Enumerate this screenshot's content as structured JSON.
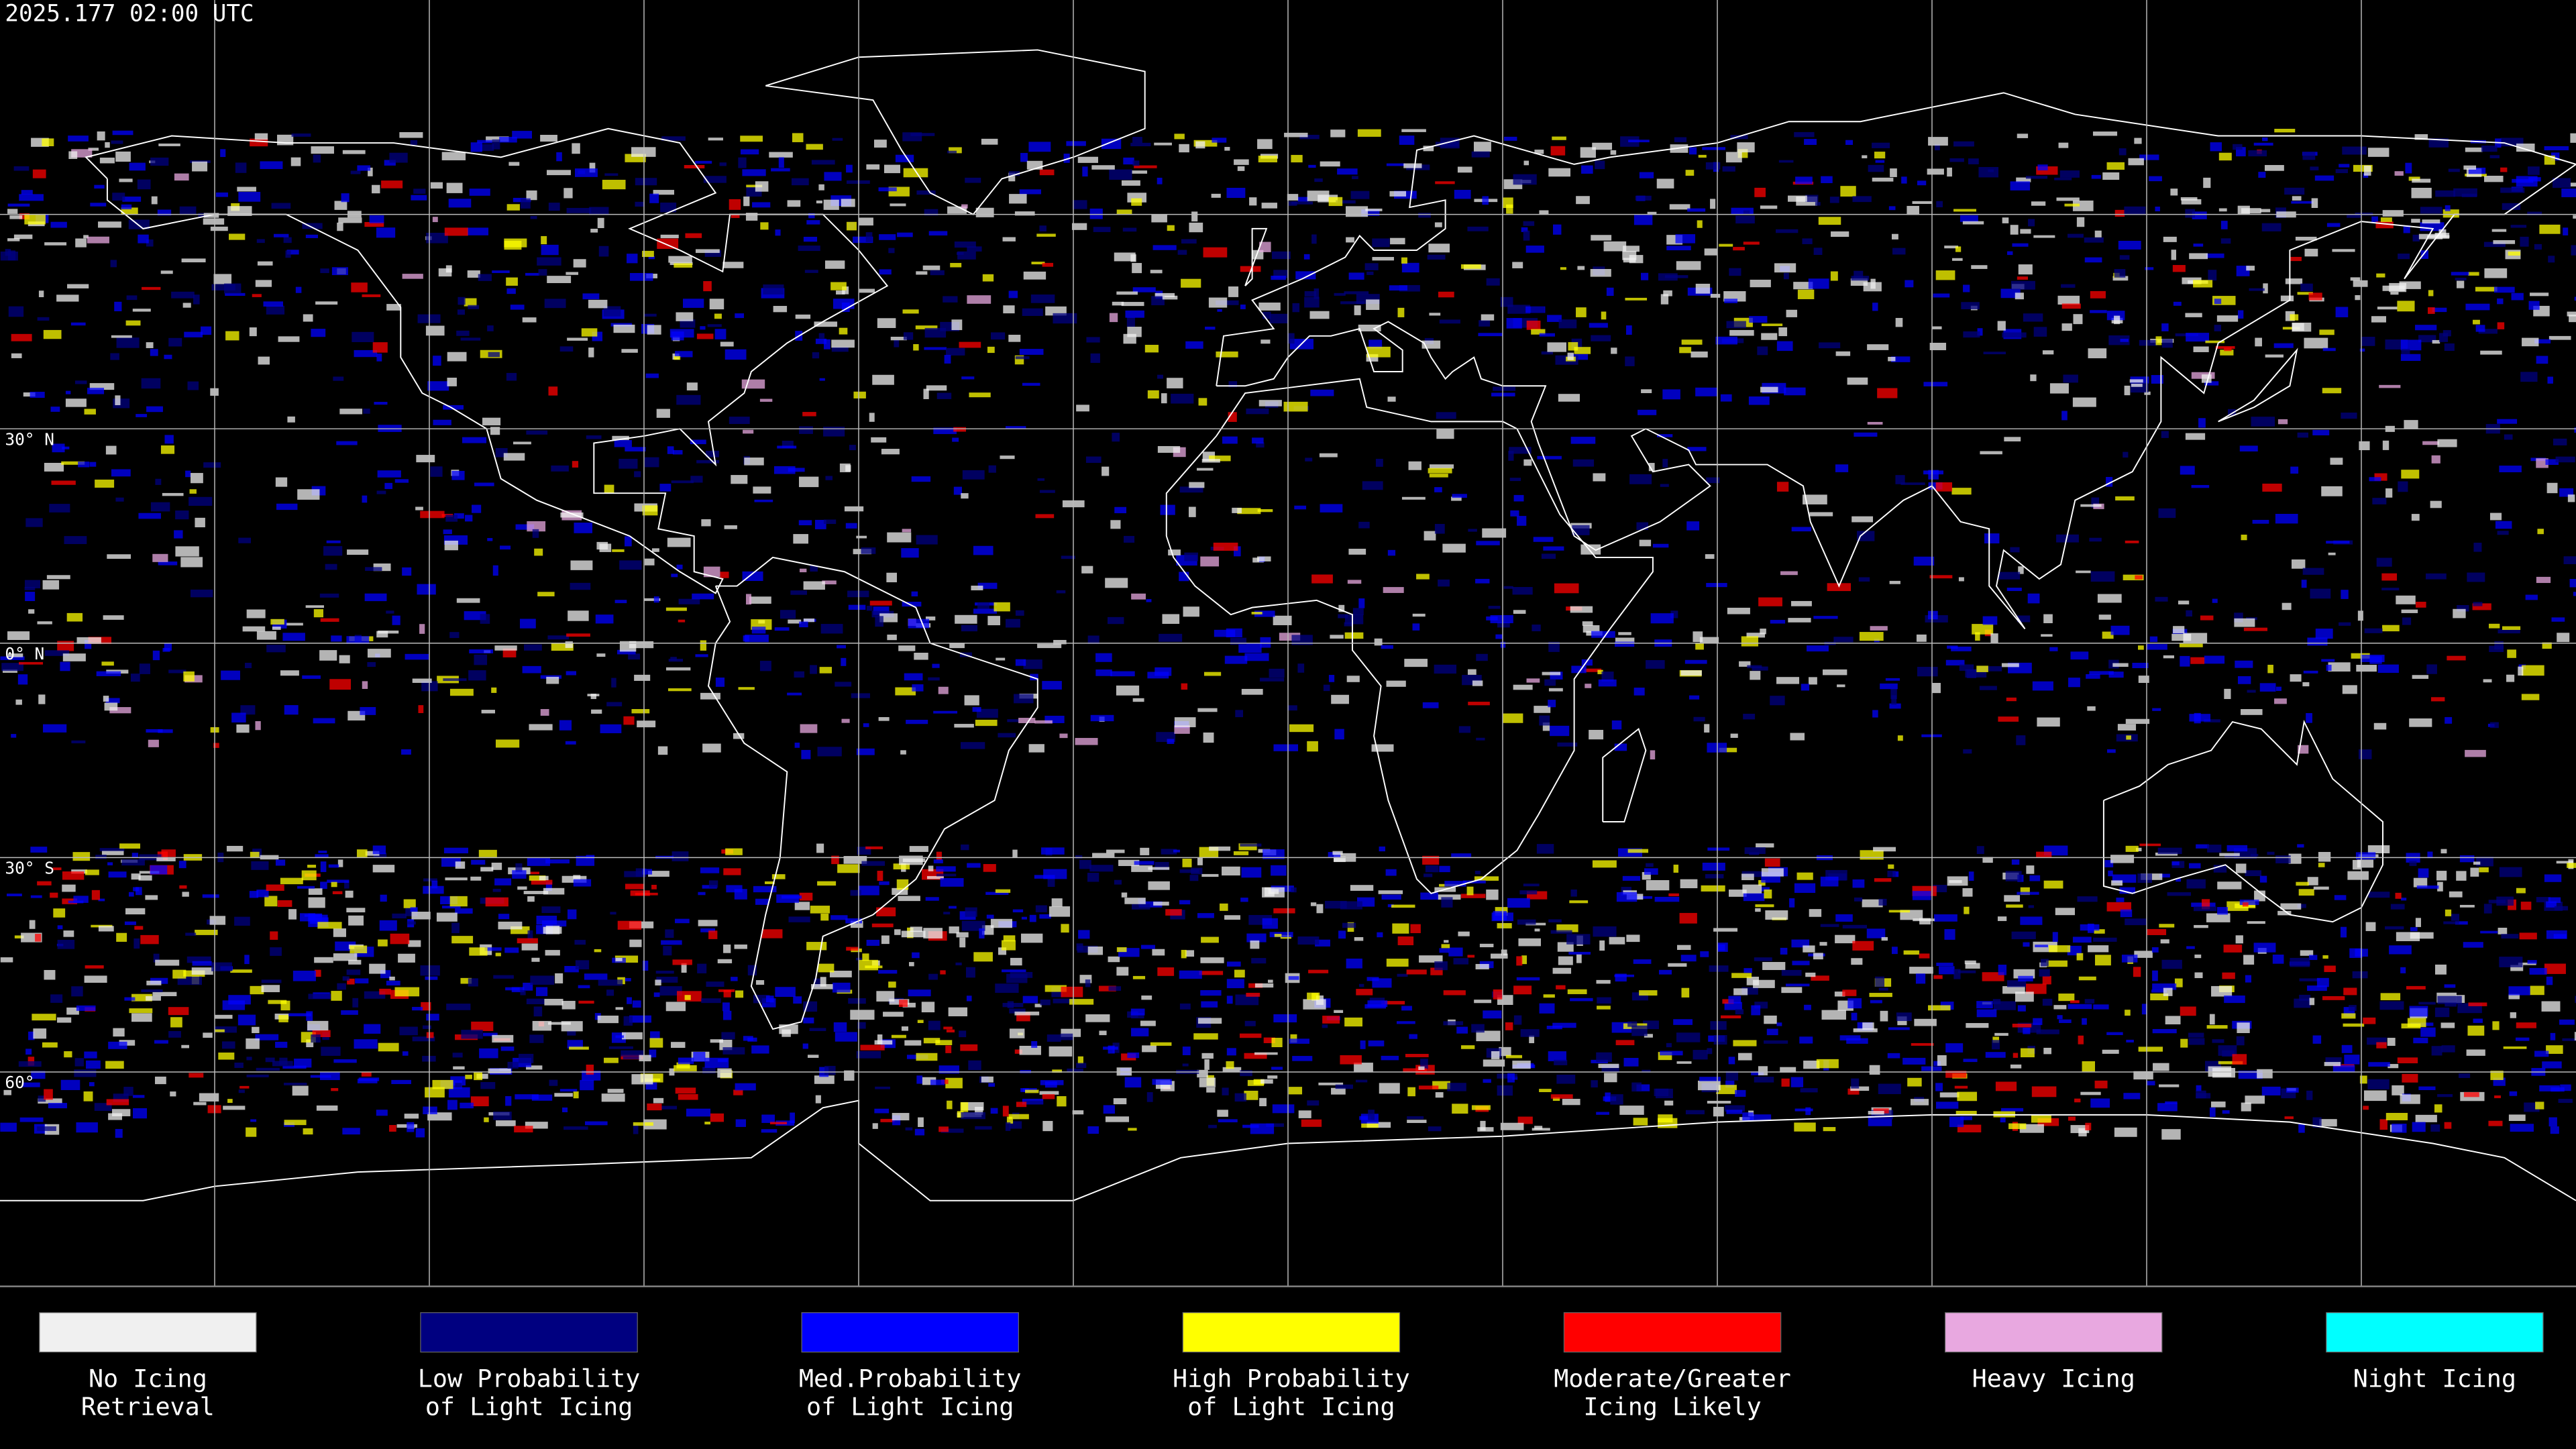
{
  "header": {
    "timestamp": "2025.177 02:00 UTC"
  },
  "map": {
    "latitude_labels": [
      "30° N",
      "0° N",
      "30° S",
      "60°"
    ]
  },
  "legend": {
    "items": [
      {
        "label": [
          "No Icing",
          "Retrieval"
        ],
        "color": "#f0f0f0"
      },
      {
        "label": [
          "Low Probability",
          "of Light Icing"
        ],
        "color": "#000080"
      },
      {
        "label": [
          "Med.Probability",
          "of Light Icing"
        ],
        "color": "#0000ff"
      },
      {
        "label": [
          "High Probability",
          "of Light Icing"
        ],
        "color": "#ffff00"
      },
      {
        "label": [
          "Moderate/Greater",
          "Icing Likely"
        ],
        "color": "#ff0000"
      },
      {
        "label": [
          "Heavy Icing"
        ],
        "color": "#e8a8e0"
      },
      {
        "label": [
          "Night Icing"
        ],
        "color": "#00ffff"
      }
    ]
  }
}
